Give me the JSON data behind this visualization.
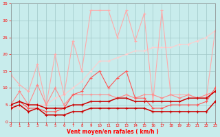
{
  "x": [
    0,
    1,
    2,
    3,
    4,
    5,
    6,
    7,
    8,
    9,
    10,
    11,
    12,
    13,
    14,
    15,
    16,
    17,
    18,
    19,
    20,
    21,
    22,
    23
  ],
  "line_A": [
    14,
    11,
    9,
    17,
    5,
    20,
    8,
    24,
    15,
    33,
    33,
    33,
    25,
    33,
    24,
    32,
    6,
    33,
    8,
    8,
    8,
    7,
    7,
    27
  ],
  "line_B": [
    4,
    4,
    5,
    5,
    5,
    7,
    8,
    10,
    12,
    15,
    18,
    18,
    19,
    20,
    21,
    21,
    22,
    22,
    22,
    23,
    23,
    24,
    25,
    27
  ],
  "line_C": [
    5,
    9,
    5,
    11,
    5,
    10,
    5,
    8,
    8,
    8,
    8,
    8,
    7,
    8,
    7,
    8,
    8,
    7,
    8,
    7,
    8,
    7,
    8,
    9
  ],
  "line_D": [
    5,
    6,
    4,
    4,
    3,
    3,
    4,
    8,
    9,
    13,
    15,
    10,
    13,
    15,
    7,
    7,
    4,
    4,
    5,
    5,
    5,
    5,
    6,
    10
  ],
  "line_E": [
    5,
    6,
    5,
    5,
    4,
    4,
    4,
    5,
    5,
    6,
    6,
    6,
    7,
    7,
    6,
    6,
    6,
    6,
    6,
    6,
    7,
    7,
    7,
    9
  ],
  "line_F": [
    4,
    5,
    3,
    4,
    2,
    2,
    2,
    3,
    3,
    4,
    4,
    4,
    4,
    4,
    4,
    4,
    3,
    3,
    3,
    3,
    3,
    3,
    3,
    6
  ],
  "bgcolor": "#c8ecec",
  "grid_color": "#a0c8c8",
  "col_light_pink": "#ffaaaa",
  "col_pale_pink": "#ffcccc",
  "col_mid_red": "#ff5555",
  "col_dark_red": "#cc0000",
  "col_salmon": "#ff8888",
  "xlabel": "Vent moyen/en rafales ( km/h )",
  "ylim": [
    0,
    35
  ],
  "xlim": [
    0,
    23
  ],
  "yticks": [
    0,
    5,
    10,
    15,
    20,
    25,
    30,
    35
  ]
}
